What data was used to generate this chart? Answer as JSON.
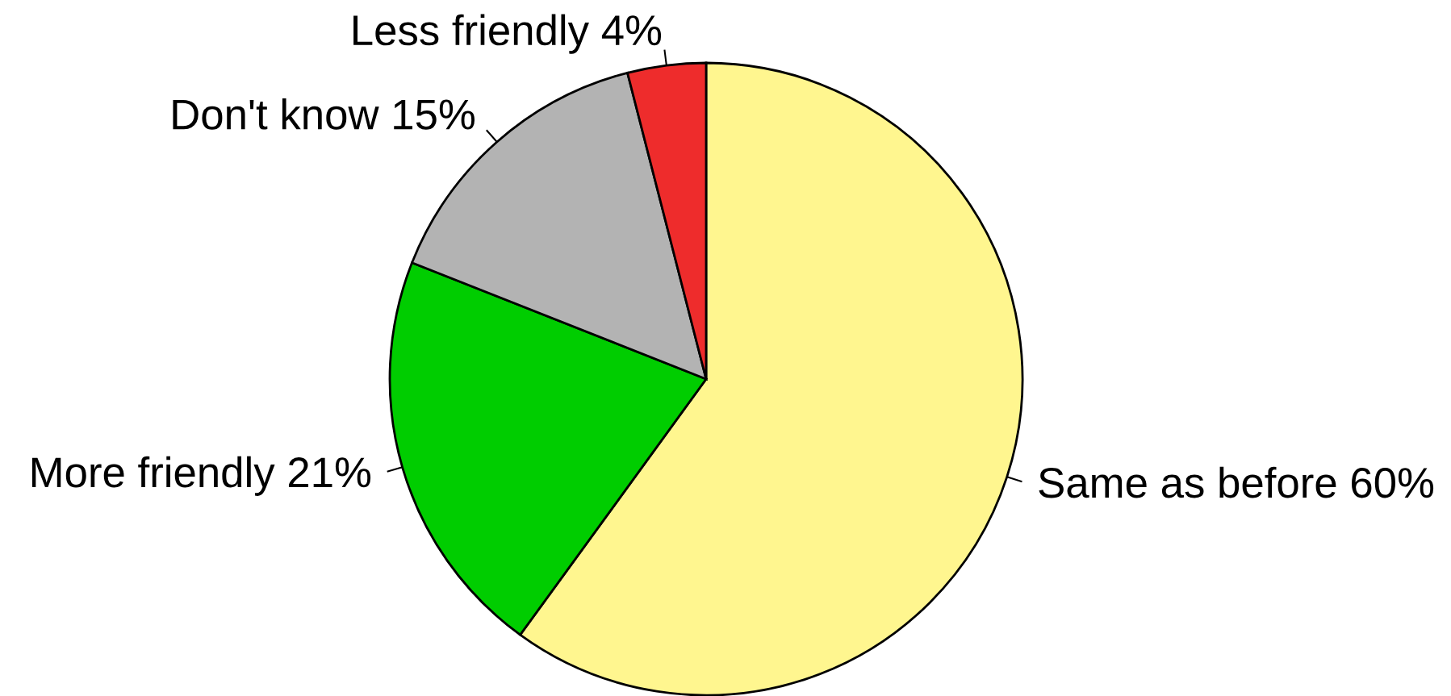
{
  "chart_data": {
    "type": "pie",
    "categories": [
      "Same as before",
      "More friendly",
      "Don't know",
      "Less friendly"
    ],
    "values": [
      60,
      21,
      15,
      4
    ],
    "colors": [
      "#fff68f",
      "#00cd00",
      "#b3b3b3",
      "#ee2c2c"
    ],
    "value_labels": [
      "60%",
      "21%",
      "15%",
      "4%"
    ]
  }
}
